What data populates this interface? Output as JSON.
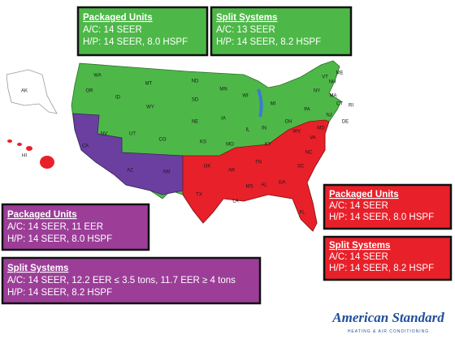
{
  "boxes": [
    {
      "title": "Packaged Units",
      "lines": [
        "A/C: 14 SEER",
        "H/P: 14 SEER,  8.0 HSPF"
      ]
    },
    {
      "title": "Split Systems",
      "lines": [
        "A/C: 13 SEER",
        "H/P: 14 SEER, 8.2 HSPF"
      ]
    },
    {
      "title": "Packaged Units",
      "lines": [
        "A/C: 14 SEER, 11 EER",
        "H/P: 14 SEER,  8.0 HSPF"
      ]
    },
    {
      "title": "Split Systems",
      "lines": [
        "A/C: 14 SEER, 12.2 EER ≤ 3.5 tons, 11.7 EER ≥ 4 tons",
        "H/P: 14 SEER, 8.2 HSPF"
      ]
    },
    {
      "title": "Packaged Units",
      "lines": [
        "A/C: 14 SEER",
        "H/P: 14 SEER,  8.0 HSPF"
      ]
    },
    {
      "title": "Split Systems",
      "lines": [
        "A/C: 14 SEER",
        "H/P: 14 SEER, 8.2 HSPF"
      ]
    }
  ],
  "states": [
    "AK",
    "HI",
    "WA",
    "OR",
    "ID",
    "MT",
    "WY",
    "ND",
    "SD",
    "NE",
    "MN",
    "IA",
    "WI",
    "MI",
    "IL",
    "IN",
    "OH",
    "PA",
    "NY",
    "VT",
    "NH",
    "ME",
    "MA",
    "RI",
    "CT",
    "NJ",
    "DE",
    "MD",
    "UT",
    "CO",
    "KS",
    "MO",
    "NV",
    "CA",
    "AZ",
    "NM",
    "OK",
    "TX",
    "AR",
    "LA",
    "MS",
    "AL",
    "GA",
    "FL",
    "SC",
    "NC",
    "TN",
    "KY",
    "VA",
    "WV"
  ],
  "logo": {
    "name": "American Standard",
    "tagline": "HEATING & AIR CONDITIONING"
  }
}
